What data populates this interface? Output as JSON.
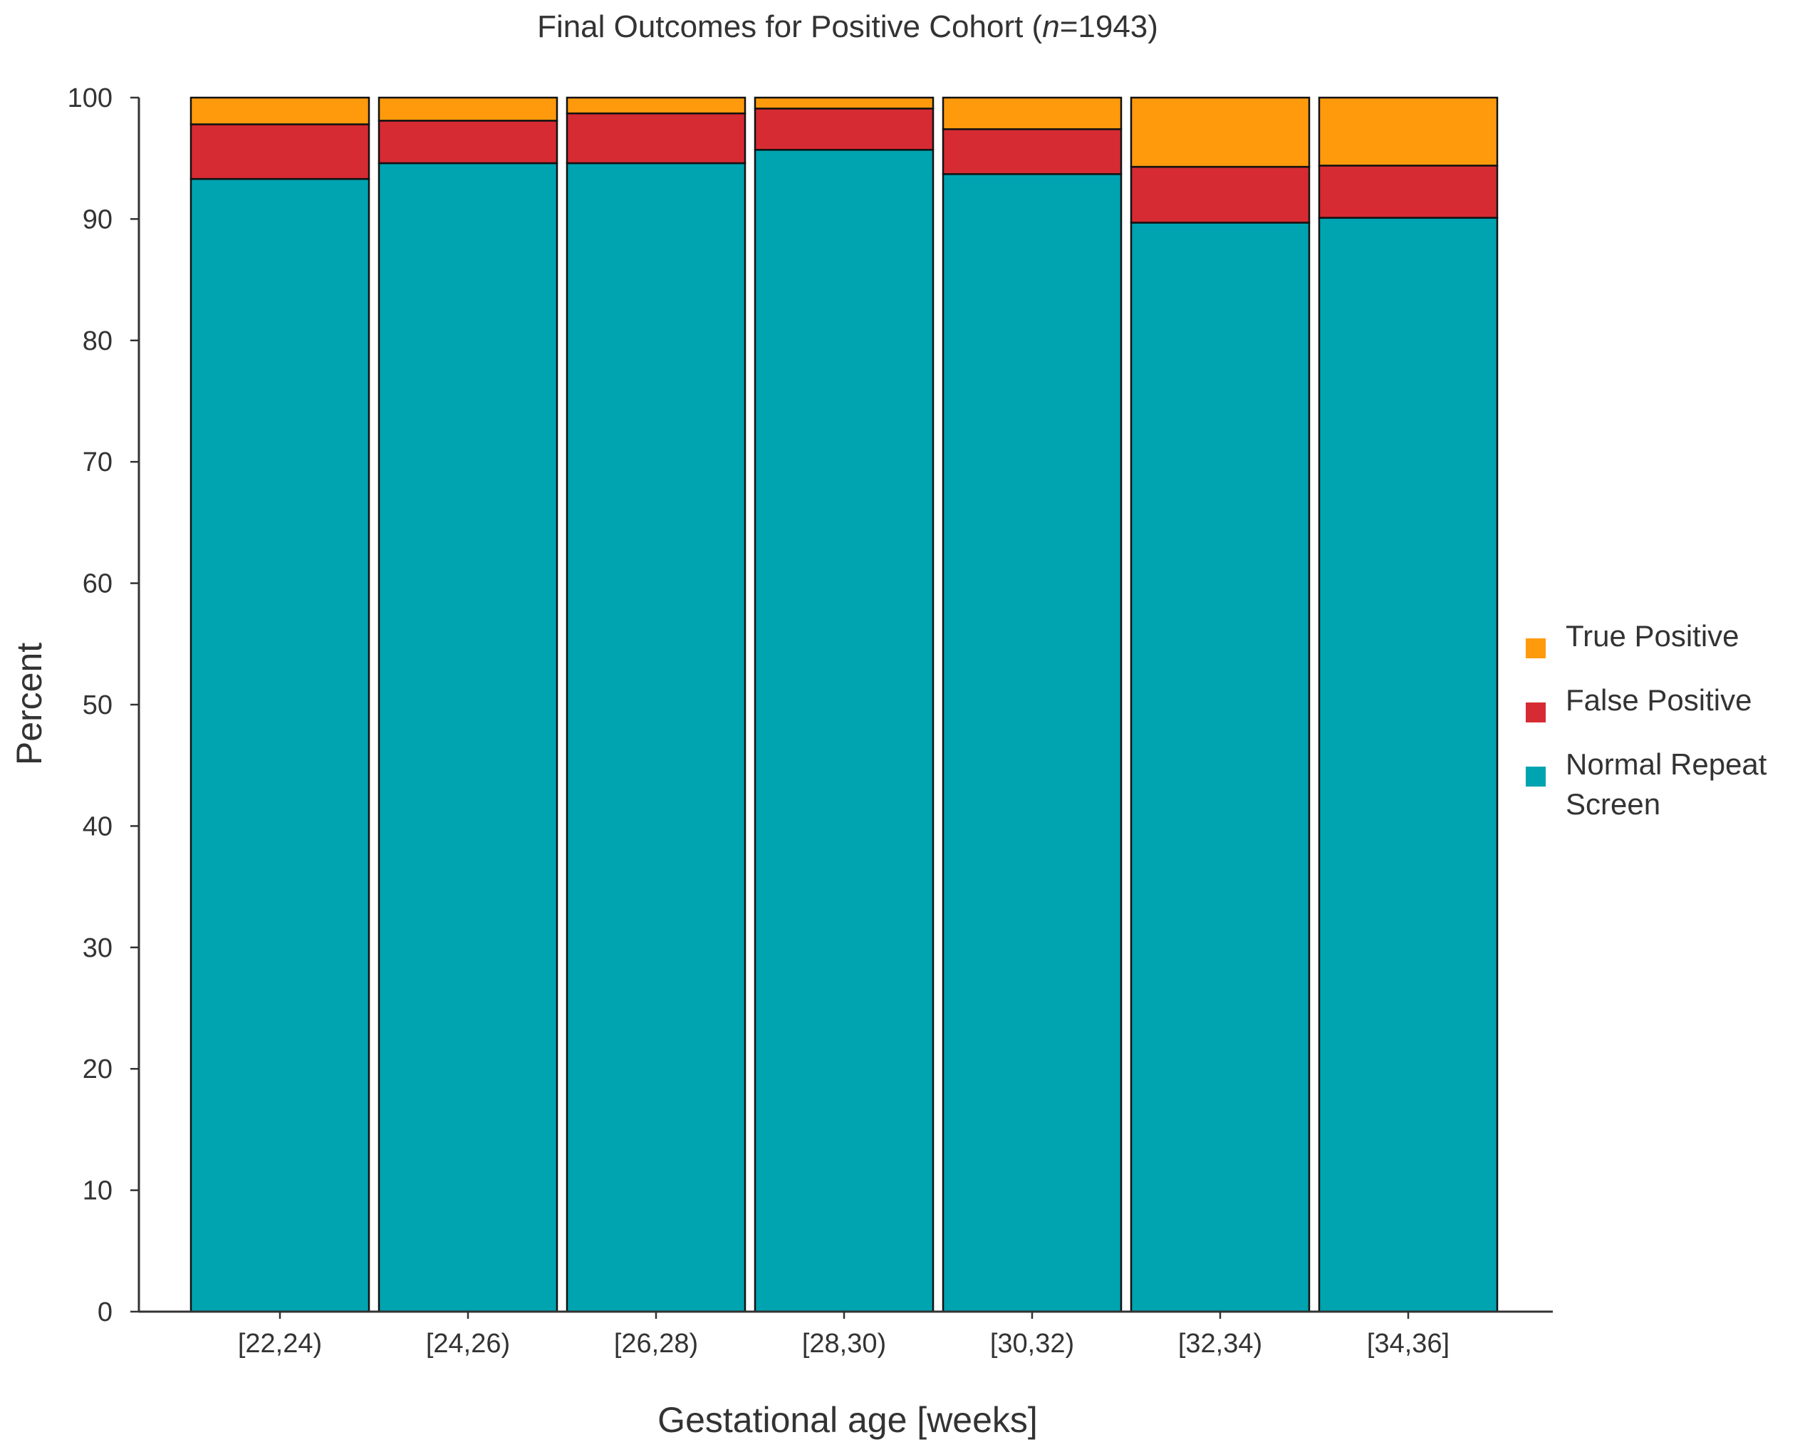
{
  "chart_data": {
    "type": "bar",
    "stacked": true,
    "title": "Final Outcomes for Positive Cohort (n=1943)",
    "title_parts": {
      "prefix": "Final Outcomes for Positive Cohort (",
      "italic": "n",
      "suffix": "=1943)"
    },
    "xlabel": "Gestational age [weeks]",
    "ylabel": "Percent",
    "ylim": [
      0,
      100
    ],
    "yticks": [
      0,
      10,
      20,
      30,
      40,
      50,
      60,
      70,
      80,
      90,
      100
    ],
    "categories": [
      "[22,24)",
      "[24,26)",
      "[26,28)",
      "[28,30)",
      "[30,32)",
      "[32,34)",
      "[34,36]"
    ],
    "series": [
      {
        "name": "Normal Repeat Screen",
        "color": "#00A3B0",
        "values": [
          93.3,
          94.6,
          94.6,
          95.7,
          93.7,
          89.7,
          90.1
        ]
      },
      {
        "name": "False Positive",
        "color": "#D62B33",
        "values": [
          4.5,
          3.5,
          4.1,
          3.4,
          3.7,
          4.6,
          4.3
        ]
      },
      {
        "name": "True Positive",
        "color": "#FF9A0D",
        "values": [
          2.2,
          1.9,
          1.3,
          0.9,
          2.6,
          5.7,
          5.6
        ]
      }
    ],
    "legend": {
      "position": "right",
      "items": [
        {
          "label": "True Positive",
          "color": "#FF9A0D"
        },
        {
          "label": "False Positive",
          "color": "#D62B33"
        },
        {
          "label_lines": [
            "Normal Repeat",
            " Screen"
          ],
          "color": "#00A3B0"
        }
      ]
    },
    "grid": false
  }
}
